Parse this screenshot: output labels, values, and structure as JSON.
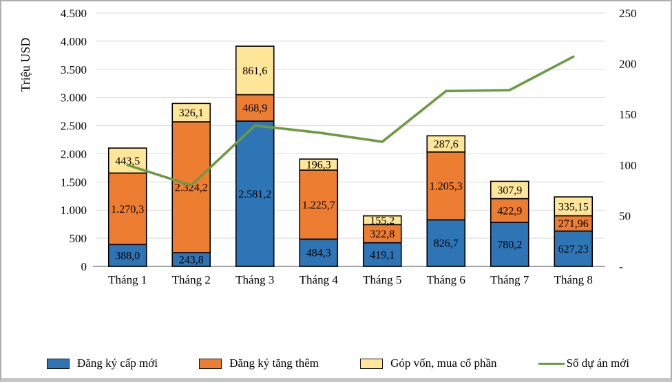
{
  "chart_data": {
    "type": "combo-stacked-bar-line",
    "categories": [
      "Tháng 1",
      "Tháng 2",
      "Tháng 3",
      "Tháng 4",
      "Tháng 5",
      "Tháng 6",
      "Tháng 7",
      "Tháng 8"
    ],
    "bar_series": [
      {
        "name": "Đăng ký cấp mới",
        "color": "#2e75b6",
        "values": [
          388.0,
          243.8,
          2581.2,
          484.3,
          419.1,
          826.7,
          780.2,
          627.23
        ],
        "labels": [
          "388,0",
          "243,8",
          "2.581,2",
          "484,3",
          "419,1",
          "826,7",
          "780,2",
          "627,23"
        ]
      },
      {
        "name": "Đăng ký tăng thêm",
        "color": "#ed7d31",
        "values": [
          1270.3,
          2324.2,
          468.9,
          1225.7,
          322.8,
          1205.3,
          422.9,
          271.96
        ],
        "labels": [
          "1.270,3",
          "2.324,2",
          "468,9",
          "1.225,7",
          "322,8",
          "1.205,3",
          "422,9",
          "271,96"
        ]
      },
      {
        "name": "Góp vốn, mua cổ phần",
        "color": "#ffe699",
        "values": [
          443.5,
          326.1,
          861.6,
          196.3,
          155.2,
          287.6,
          307.9,
          335.15
        ],
        "labels": [
          "443,5",
          "326,1",
          "861,6",
          "196,3",
          "155,2",
          "287,6",
          "307,9",
          "335,15"
        ]
      }
    ],
    "line_series": {
      "name": "Số dự án mới",
      "color": "#6d9a42",
      "axis": "right",
      "values": [
        100,
        80,
        139,
        132,
        123,
        173,
        174,
        207
      ]
    },
    "left_axis": {
      "title": "Triệu USD",
      "min": 0,
      "max": 4500,
      "step": 500,
      "tick_labels": [
        "4.500",
        "4.000",
        "3.500",
        "3.000",
        "2.500",
        "2.000",
        "1.500",
        "1.000",
        "500",
        "0"
      ]
    },
    "right_axis": {
      "min": 0,
      "max": 250,
      "step": 50,
      "tick_labels": [
        "250",
        "200",
        "150",
        "100",
        "50",
        "-"
      ]
    },
    "grid": "horizontal",
    "legend_position": "bottom",
    "colors": {
      "gridline": "#d9d9d9",
      "axis_line": "#a6a6a6",
      "bar_border": "#000000"
    }
  }
}
